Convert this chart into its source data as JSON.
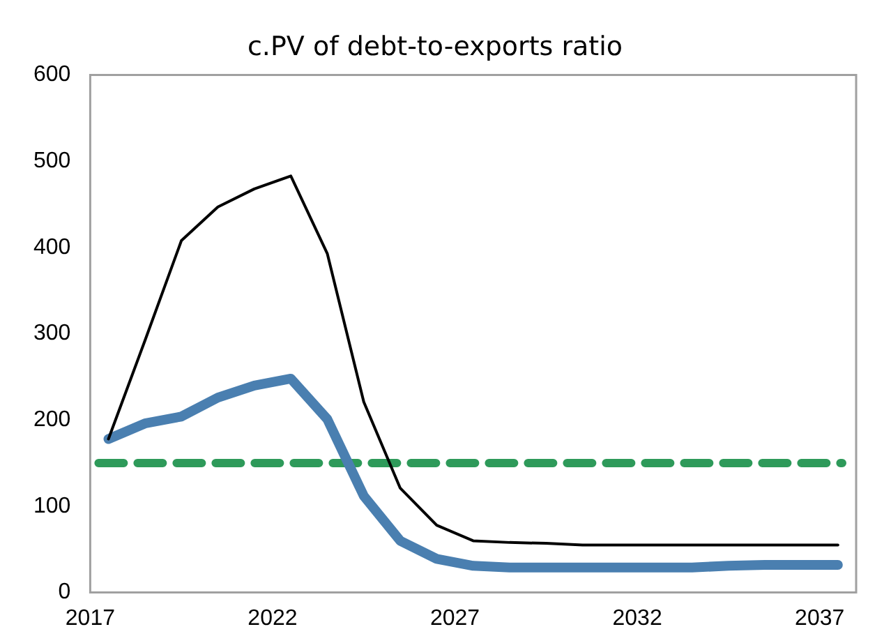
{
  "chart_data": {
    "type": "line",
    "title": "c.PV of debt-to-exports ratio",
    "x": [
      2017.5,
      2018.5,
      2019.5,
      2020.5,
      2021.5,
      2022.5,
      2023.5,
      2024.5,
      2025.5,
      2026.5,
      2027.5,
      2028.5,
      2029.5,
      2030.5,
      2031.5,
      2032.5,
      2033.5,
      2034.5,
      2035.5,
      2036.5,
      2037.5
    ],
    "series": [
      {
        "color": "#000000",
        "values": [
          178,
          292,
          408,
          447,
          468,
          483,
          393,
          221,
          121,
          78,
          60,
          58,
          57,
          55,
          55,
          55,
          55,
          55,
          55,
          55,
          55
        ]
      },
      {
        "color": "#4a7fb0",
        "values": [
          178,
          196,
          204,
          226,
          240,
          248,
          201,
          112,
          60,
          39,
          31,
          29,
          29,
          29,
          29,
          29,
          29,
          31,
          32,
          32,
          32
        ]
      }
    ],
    "ref_lines": [
      {
        "axis": "y",
        "value": 150,
        "color": "#2e9a5a",
        "line_style": "dashed"
      }
    ],
    "xlim": [
      2017,
      2038
    ],
    "xticks": [
      2017,
      2022,
      2027,
      2032,
      2037
    ],
    "ylim": [
      0,
      600
    ],
    "yticks": [
      0,
      100,
      200,
      300,
      400,
      500,
      600
    ],
    "grid": false,
    "legend": false,
    "marker": "none",
    "line_style": "solid"
  }
}
